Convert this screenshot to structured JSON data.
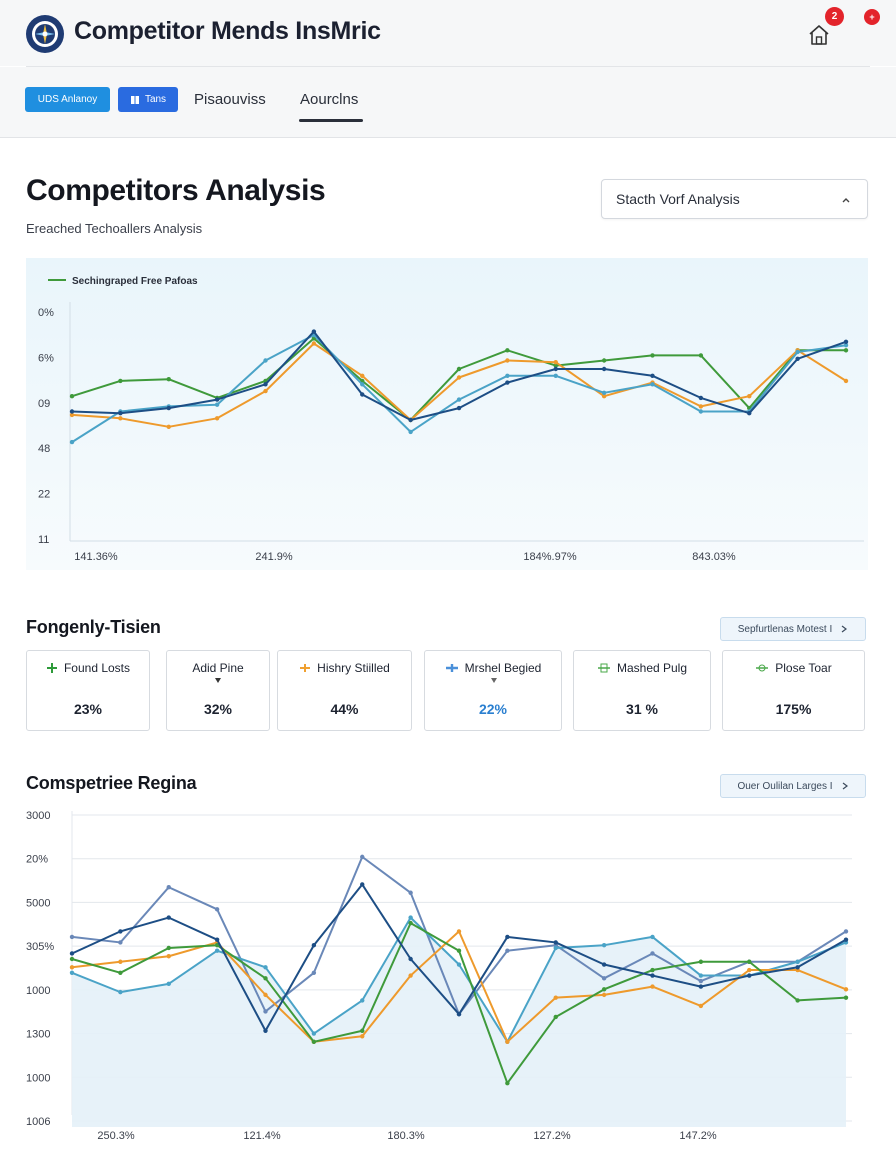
{
  "header": {
    "app_title": "Competitor Mends InsMric",
    "notification_count": "2",
    "second_badge": "+"
  },
  "nav": {
    "chip_1": "UDS Anlanoy",
    "chip_2": "Tans",
    "link_1": "Pisaouviss",
    "link_2": "Aourclns"
  },
  "main": {
    "title": "Competitors Analysis",
    "subtitle": "Ereached Techoallers Analysis",
    "dropdown_value": "Stacth Vorf Analysis"
  },
  "metrics_section": {
    "title": "Fongenly-Tisien",
    "link_label": "Sepfurtlenas Motest I",
    "cards": [
      {
        "label": "Found Losts",
        "value": "23%",
        "icon": "plus-icon",
        "color": "#2e9a3a"
      },
      {
        "label": "Adid Pine",
        "value": "32%",
        "icon": "caret-down-icon",
        "color": "#333333"
      },
      {
        "label": "Hishry Stiilled",
        "value": "44%",
        "icon": "plus-icon",
        "color": "#f0a030"
      },
      {
        "label": "Mrshel Begied",
        "value": "22%",
        "icon": "plus-icon",
        "color": "#4a90d9"
      },
      {
        "label": "Mashed Pulg",
        "value": "31 %",
        "icon": "legend-icon",
        "color": "#4aa84a"
      },
      {
        "label": "Plose Toar",
        "value": "175%",
        "icon": "legend-icon",
        "color": "#4aa84a"
      }
    ]
  },
  "chart_section_2": {
    "title": "Comspetriee Regina",
    "link_label": "Ouer Oulilan Larges I"
  },
  "colors": {
    "green": "#3f9a3b",
    "orange": "#ee9a2c",
    "navy": "#1d4e85",
    "lightblue": "#4aa3c7",
    "slate": "#6a88b8",
    "accent_blue": "#1f8fe0"
  },
  "chart_data": [
    {
      "type": "line",
      "title": "",
      "legend": [
        "Sechingraped Free Pafoas"
      ],
      "legend_position": "top-left",
      "y_tick_labels": [
        "0%",
        "6%",
        "09",
        "48",
        "22",
        "11"
      ],
      "x_tick_labels": [
        "141.36%",
        "241.9%",
        "184%.97%",
        "843.03%"
      ],
      "x": [
        0,
        1,
        2,
        3,
        4,
        5,
        6,
        7,
        8,
        9,
        10,
        11,
        12,
        13,
        14,
        15,
        16
      ],
      "ylim": [
        0,
        100
      ],
      "series": [
        {
          "name": "green",
          "color": "#3f9a3b",
          "values": [
            54,
            63,
            64,
            53,
            63,
            88,
            63,
            40,
            70,
            81,
            72,
            75,
            78,
            78,
            47,
            81,
            81
          ]
        },
        {
          "name": "orange",
          "color": "#ee9a2c",
          "values": [
            43,
            41,
            36,
            41,
            57,
            85,
            66,
            40,
            65,
            75,
            74,
            54,
            62,
            48,
            54,
            81,
            63
          ]
        },
        {
          "name": "lightblue",
          "color": "#4aa3c7",
          "values": [
            27,
            45,
            48,
            49,
            75,
            90,
            61,
            33,
            52,
            66,
            66,
            56,
            61,
            45,
            45,
            80,
            84
          ]
        },
        {
          "name": "navy",
          "color": "#1d4e85",
          "values": [
            45,
            44,
            47,
            52,
            61,
            92,
            55,
            40,
            47,
            62,
            70,
            70,
            66,
            53,
            44,
            76,
            86
          ]
        }
      ]
    },
    {
      "type": "line",
      "title": "",
      "y_tick_labels": [
        "3000",
        "20%",
        "5000",
        "305%",
        "1000",
        "1300",
        "1000",
        "1006"
      ],
      "x_tick_labels": [
        "250.3%",
        "121.4%",
        "180.3%",
        "127.2%",
        "147.2%"
      ],
      "x": [
        0,
        1,
        2,
        3,
        4,
        5,
        6,
        7,
        8,
        9,
        10,
        11,
        12,
        13,
        14,
        15,
        16
      ],
      "ylim": [
        0,
        100
      ],
      "series": [
        {
          "name": "slate",
          "color": "#6a88b8",
          "values": [
            58,
            56,
            76,
            68,
            31,
            45,
            87,
            74,
            30,
            53,
            55,
            43,
            52,
            42,
            49,
            49,
            60
          ]
        },
        {
          "name": "lightblue",
          "color": "#4aa3c7",
          "values": [
            45,
            38,
            41,
            53,
            47,
            23,
            35,
            65,
            48,
            20,
            54,
            55,
            58,
            44,
            44,
            49,
            56
          ]
        },
        {
          "name": "orange",
          "color": "#ee9a2c",
          "values": [
            47,
            49,
            51,
            56,
            37,
            20,
            22,
            44,
            60,
            20,
            36,
            37,
            40,
            33,
            46,
            46,
            39
          ]
        },
        {
          "name": "green",
          "color": "#3f9a3b",
          "values": [
            50,
            45,
            54,
            55,
            43,
            20,
            24,
            63,
            53,
            5,
            29,
            39,
            46,
            49,
            49,
            35,
            36
          ]
        },
        {
          "name": "navy",
          "color": "#1d4e85",
          "values": [
            52,
            60,
            65,
            57,
            24,
            55,
            77,
            50,
            30,
            58,
            56,
            48,
            44,
            40,
            44,
            47,
            57
          ]
        }
      ]
    }
  ]
}
